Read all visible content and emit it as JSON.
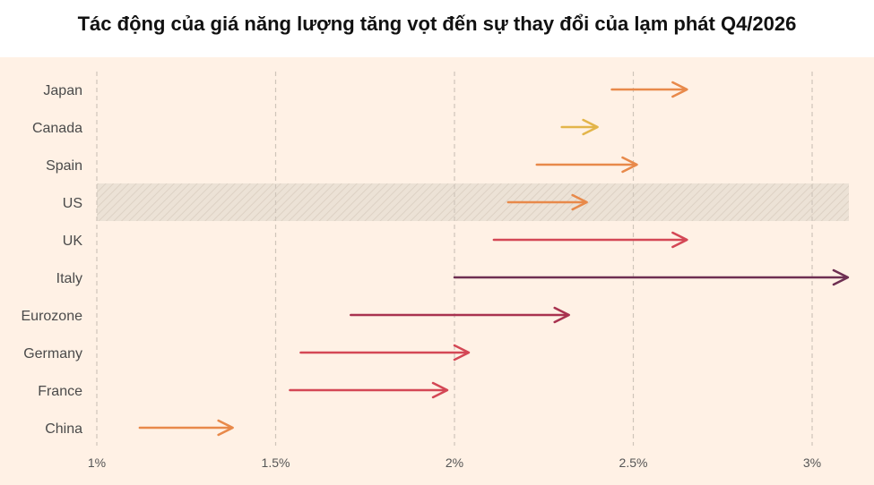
{
  "chart_data": {
    "type": "arrow",
    "title": "Tác động của giá năng lượng tăng vọt đến sự thay đổi của lạm phát Q4/2026",
    "x_unit": "%",
    "xlim": [
      1,
      3.1
    ],
    "xticks": [
      1,
      1.5,
      2,
      2.5,
      3
    ],
    "xtick_labels": [
      "1%",
      "1.5%",
      "2%",
      "2.5%",
      "3%"
    ],
    "grid": "vertical dashed",
    "highlighted_category": "US",
    "categories": [
      "Japan",
      "Canada",
      "Spain",
      "US",
      "UK",
      "Italy",
      "Eurozone",
      "Germany",
      "France",
      "China"
    ],
    "series": [
      {
        "category": "Japan",
        "from": 2.44,
        "to": 2.65,
        "color": "#e8894a"
      },
      {
        "category": "Canada",
        "from": 2.3,
        "to": 2.4,
        "color": "#e3b54a"
      },
      {
        "category": "Spain",
        "from": 2.23,
        "to": 2.51,
        "color": "#e8894a"
      },
      {
        "category": "US",
        "from": 2.15,
        "to": 2.37,
        "color": "#e8894a"
      },
      {
        "category": "UK",
        "from": 2.11,
        "to": 2.65,
        "color": "#d44755"
      },
      {
        "category": "Italy",
        "from": 2.0,
        "to": 3.1,
        "color": "#6e2f52"
      },
      {
        "category": "Eurozone",
        "from": 1.71,
        "to": 2.32,
        "color": "#a8324f"
      },
      {
        "category": "Germany",
        "from": 1.57,
        "to": 2.04,
        "color": "#d44755"
      },
      {
        "category": "France",
        "from": 1.54,
        "to": 1.98,
        "color": "#d44755"
      },
      {
        "category": "China",
        "from": 1.12,
        "to": 1.38,
        "color": "#e8894a"
      }
    ]
  }
}
